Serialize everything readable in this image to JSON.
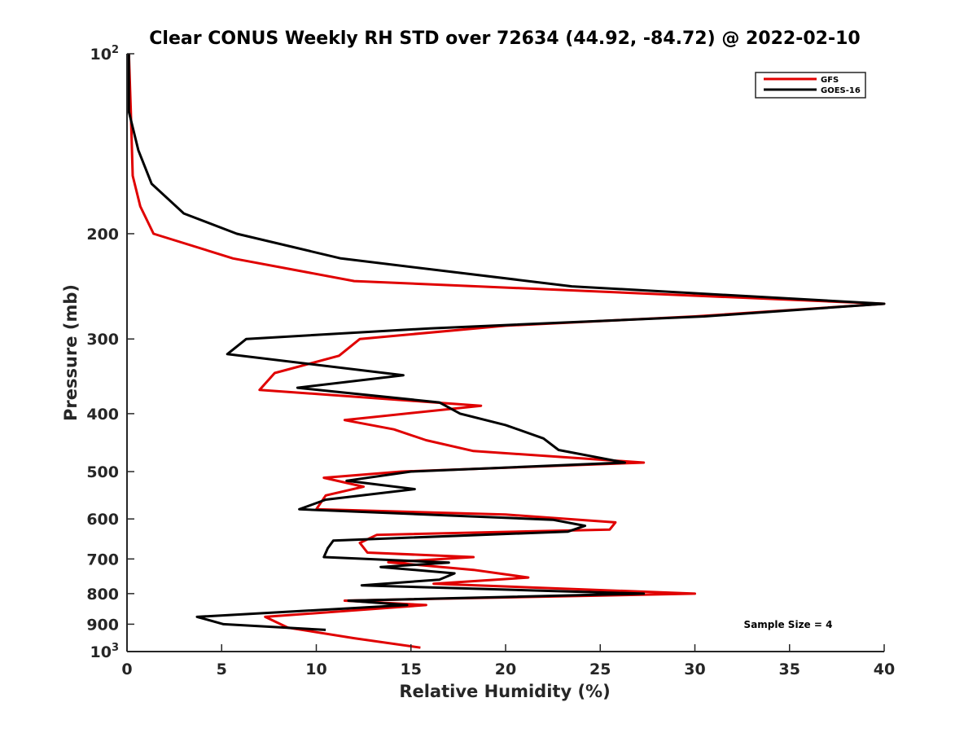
{
  "chart_data": {
    "type": "line",
    "title": "Clear CONUS Weekly RH STD over 72634 (44.92, -84.72) @ 2022-02-10",
    "xlabel": "Relative Humidity (%)",
    "ylabel": "Pressure (mb)",
    "xlim": [
      0,
      40
    ],
    "ylim": [
      100,
      1000
    ],
    "yscale": "log",
    "yreversed": true,
    "grid": false,
    "x_ticks": [
      "0",
      "5",
      "10",
      "15",
      "20",
      "25",
      "30",
      "35",
      "40"
    ],
    "x_tick_values": [
      0,
      5,
      10,
      15,
      20,
      25,
      30,
      35,
      40
    ],
    "y_ticks": [
      {
        "value": 100,
        "label": "10",
        "sup": "2"
      },
      {
        "value": 200,
        "label": "200",
        "sup": ""
      },
      {
        "value": 300,
        "label": "300",
        "sup": ""
      },
      {
        "value": 400,
        "label": "400",
        "sup": ""
      },
      {
        "value": 500,
        "label": "500",
        "sup": ""
      },
      {
        "value": 600,
        "label": "600",
        "sup": ""
      },
      {
        "value": 700,
        "label": "700",
        "sup": ""
      },
      {
        "value": 800,
        "label": "800",
        "sup": ""
      },
      {
        "value": 900,
        "label": "900",
        "sup": ""
      },
      {
        "value": 1000,
        "label": "10",
        "sup": "3"
      }
    ],
    "legend": {
      "position": "top-right"
    },
    "annotation": "Sample Size = 4",
    "series": [
      {
        "name": "GFS",
        "color": "#e00000",
        "points": [
          [
            0.1,
            100
          ],
          [
            0.2,
            125
          ],
          [
            0.3,
            160
          ],
          [
            0.7,
            180
          ],
          [
            1.4,
            200
          ],
          [
            5.6,
            220
          ],
          [
            12.0,
            240
          ],
          [
            40.0,
            262
          ],
          [
            30.0,
            275
          ],
          [
            20.0,
            285
          ],
          [
            12.3,
            300
          ],
          [
            11.2,
            320
          ],
          [
            7.8,
            342
          ],
          [
            7.0,
            365
          ],
          [
            18.7,
            388
          ],
          [
            11.5,
            410
          ],
          [
            14.1,
            425
          ],
          [
            15.8,
            443
          ],
          [
            18.3,
            462
          ],
          [
            27.3,
            483
          ],
          [
            14.5,
            500
          ],
          [
            10.4,
            512
          ],
          [
            12.5,
            530
          ],
          [
            10.5,
            548
          ],
          [
            10.0,
            578
          ],
          [
            20.0,
            590
          ],
          [
            25.8,
            608
          ],
          [
            25.5,
            625
          ],
          [
            13.2,
            638
          ],
          [
            12.3,
            658
          ],
          [
            12.7,
            683
          ],
          [
            18.3,
            695
          ],
          [
            13.8,
            709
          ],
          [
            18.3,
            730
          ],
          [
            21.2,
            752
          ],
          [
            16.2,
            770
          ],
          [
            30.0,
            800
          ],
          [
            11.5,
            822
          ],
          [
            15.8,
            836
          ],
          [
            7.3,
            875
          ],
          [
            8.5,
            912
          ],
          [
            12.0,
            950
          ],
          [
            15.5,
            985
          ]
        ]
      },
      {
        "name": "GOES-16",
        "color": "#000000",
        "points": [
          [
            0.1,
            100
          ],
          [
            0.1,
            125
          ],
          [
            0.6,
            145
          ],
          [
            1.3,
            165
          ],
          [
            3.0,
            185
          ],
          [
            5.8,
            200
          ],
          [
            11.3,
            220
          ],
          [
            23.5,
            245
          ],
          [
            40.0,
            262
          ],
          [
            30.5,
            275
          ],
          [
            16.0,
            288
          ],
          [
            6.3,
            300
          ],
          [
            5.3,
            318
          ],
          [
            14.6,
            345
          ],
          [
            9.0,
            362
          ],
          [
            16.5,
            383
          ],
          [
            17.6,
            400
          ],
          [
            20.0,
            418
          ],
          [
            22.0,
            440
          ],
          [
            22.8,
            460
          ],
          [
            26.3,
            483
          ],
          [
            15.0,
            500
          ],
          [
            11.6,
            518
          ],
          [
            15.2,
            535
          ],
          [
            10.5,
            557
          ],
          [
            9.1,
            578
          ],
          [
            22.5,
            602
          ],
          [
            24.2,
            616
          ],
          [
            23.3,
            630
          ],
          [
            10.9,
            652
          ],
          [
            10.6,
            672
          ],
          [
            10.4,
            695
          ],
          [
            17.0,
            710
          ],
          [
            13.4,
            722
          ],
          [
            17.3,
            740
          ],
          [
            16.5,
            758
          ],
          [
            12.4,
            775
          ],
          [
            27.3,
            800
          ],
          [
            11.7,
            822
          ],
          [
            14.8,
            836
          ],
          [
            3.7,
            875
          ],
          [
            5.1,
            900
          ],
          [
            10.5,
            920
          ]
        ]
      }
    ]
  }
}
